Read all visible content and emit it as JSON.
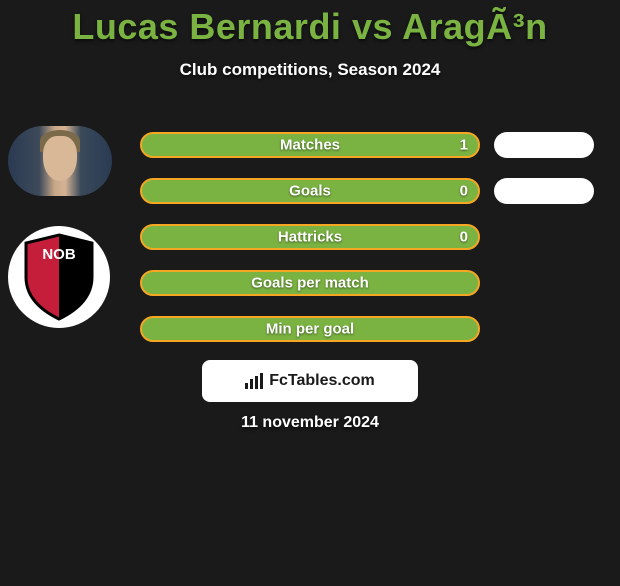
{
  "title": {
    "player1": "Lucas Bernardi",
    "vs": " vs ",
    "player2": "AragÃ³n",
    "color": "#7bb342",
    "fontsize": 36
  },
  "subtitle": "Club competitions, Season 2024",
  "colors": {
    "background": "#1a1a1a",
    "bar_fill": "#7bb342",
    "bar_border": "#f5a623",
    "bar_right": "#ffffff",
    "text": "#ffffff"
  },
  "stats": {
    "left_bar_width": 340,
    "rows": [
      {
        "label": "Matches",
        "value_left": "1",
        "right_bar_width": 100
      },
      {
        "label": "Goals",
        "value_left": "0",
        "right_bar_width": 100
      },
      {
        "label": "Hattricks",
        "value_left": "0",
        "right_bar_width": 0
      },
      {
        "label": "Goals per match",
        "value_left": "",
        "right_bar_width": 0
      },
      {
        "label": "Min per goal",
        "value_left": "",
        "right_bar_width": 0
      }
    ]
  },
  "footer": {
    "brand": "FcTables.com",
    "date": "11 november 2024"
  },
  "club_badge": {
    "text": "NOB",
    "shield_black": "#000000",
    "shield_red": "#c41e3a",
    "text_color": "#ffffff"
  }
}
